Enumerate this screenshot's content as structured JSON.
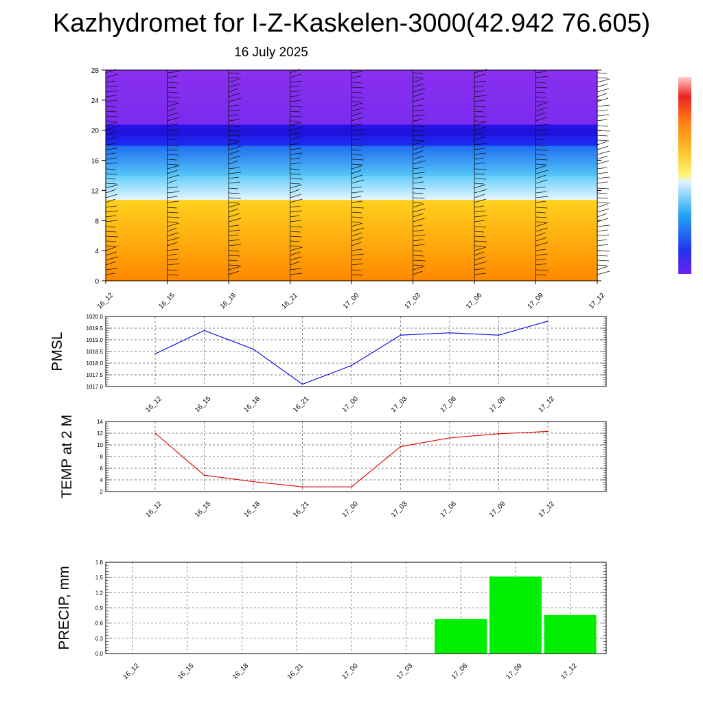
{
  "title": "Kazhydromet for I-Z-Kaskelen-3000(42.942 76.605)",
  "subtitle": "16 July 2025",
  "colors": {
    "pmsl_line": "#0000e0",
    "temp_line": "#e00000",
    "precip_bar": "#00ee00",
    "grid": "#555555"
  },
  "chart_data": [
    {
      "type": "heatmap",
      "name": "vertical-cross-section",
      "categories": [
        "16_12",
        "16_15",
        "16_18",
        "16_21",
        "17_00",
        "17_03",
        "17_06",
        "17_09",
        "17_12"
      ],
      "y_ticks": [
        0,
        4,
        8,
        12,
        16,
        20,
        24,
        28
      ],
      "ylim": [
        0,
        28
      ],
      "grid": false,
      "wind_barbs": true,
      "color_scale": "violet-blue-cyan-white-yellow-orange-red",
      "bands": [
        {
          "from": 0,
          "to": 10.8,
          "colors": [
            "#ff8800",
            "#ffd21e"
          ]
        },
        {
          "from": 10.8,
          "to": 14,
          "colors": [
            "#e6f6ff",
            "#63cdfb"
          ]
        },
        {
          "from": 14,
          "to": 18,
          "colors": [
            "#55c6f8",
            "#1e6cf0"
          ]
        },
        {
          "from": 18,
          "to": 20.8,
          "colors": [
            "#1a2cf0",
            "#2a10e6"
          ]
        },
        {
          "from": 20.8,
          "to": 28,
          "colors": [
            "#7a2cee",
            "#8a2ff0"
          ]
        }
      ]
    },
    {
      "type": "line",
      "ylabel": "PMSL",
      "categories": [
        "16_12",
        "16_15",
        "16_18",
        "16_21",
        "17_00",
        "17_03",
        "17_06",
        "17_09",
        "17_12"
      ],
      "values": [
        1018.4,
        1019.4,
        1018.6,
        1017.1,
        1017.9,
        1019.2,
        1019.3,
        1019.2,
        1019.8
      ],
      "ylim": [
        1017.0,
        1020.0
      ],
      "y_ticks": [
        "1017.0",
        "1017.5",
        "1018.0",
        "1018.5",
        "1019.0",
        "1019.5",
        "1020.0"
      ],
      "grid": true
    },
    {
      "type": "line",
      "ylabel": "TEMP at 2 M",
      "categories": [
        "16_12",
        "16_15",
        "16_18",
        "16_21",
        "17_00",
        "17_03",
        "17_06",
        "17_09",
        "17_12"
      ],
      "values": [
        12.0,
        4.8,
        3.7,
        2.8,
        2.8,
        9.7,
        11.2,
        11.9,
        12.3
      ],
      "ylim": [
        2,
        14
      ],
      "y_ticks": [
        "2",
        "4",
        "6",
        "8",
        "10",
        "12",
        "14"
      ],
      "grid": true
    },
    {
      "type": "bar",
      "ylabel": "PRECIP, mm",
      "categories": [
        "16_12",
        "16_15",
        "16_18",
        "16_21",
        "17_00",
        "17_03",
        "17_06",
        "17_09",
        "17_12"
      ],
      "values": [
        0,
        0,
        0,
        0,
        0,
        0,
        0.68,
        1.52,
        0.76
      ],
      "ylim": [
        0.0,
        1.8
      ],
      "y_ticks": [
        "0.0",
        "0.3",
        "0.6",
        "0.9",
        "1.2",
        "1.5",
        "1.8"
      ],
      "grid": true
    }
  ]
}
